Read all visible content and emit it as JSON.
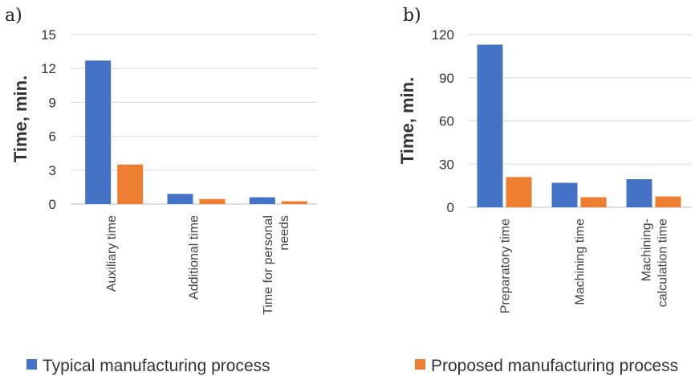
{
  "colors": {
    "typical": "#4472C4",
    "proposed": "#ED7D31"
  },
  "legend": {
    "typical_label": "Typical manufacturing process",
    "proposed_label": "Proposed manufacturing process"
  },
  "chart_data": [
    {
      "type": "bar",
      "panel": "a)",
      "title": "",
      "xlabel": "",
      "ylabel": "Time, min.",
      "ylim": [
        0,
        15
      ],
      "yticks": [
        0,
        3,
        6,
        9,
        12,
        15
      ],
      "grid": true,
      "categories": [
        [
          "Auxiliary time"
        ],
        [
          "Additional time"
        ],
        [
          "Time for personal",
          "needs"
        ]
      ],
      "series": [
        {
          "name": "Typical manufacturing process",
          "values": [
            12.7,
            0.9,
            0.6
          ]
        },
        {
          "name": "Proposed manufacturing process",
          "values": [
            3.5,
            0.45,
            0.25
          ]
        }
      ]
    },
    {
      "type": "bar",
      "panel": "b)",
      "title": "",
      "xlabel": "",
      "ylabel": "Time, min.",
      "ylim": [
        0,
        120
      ],
      "yticks": [
        0,
        30,
        60,
        90,
        120
      ],
      "grid": true,
      "categories": [
        [
          "Preparatory time"
        ],
        [
          "Machining time"
        ],
        [
          "Machining-",
          "calculation time"
        ]
      ],
      "series": [
        {
          "name": "Typical manufacturing process",
          "values": [
            113,
            17,
            19.5
          ]
        },
        {
          "name": "Proposed manufacturing process",
          "values": [
            21,
            7,
            7.5
          ]
        }
      ]
    }
  ]
}
